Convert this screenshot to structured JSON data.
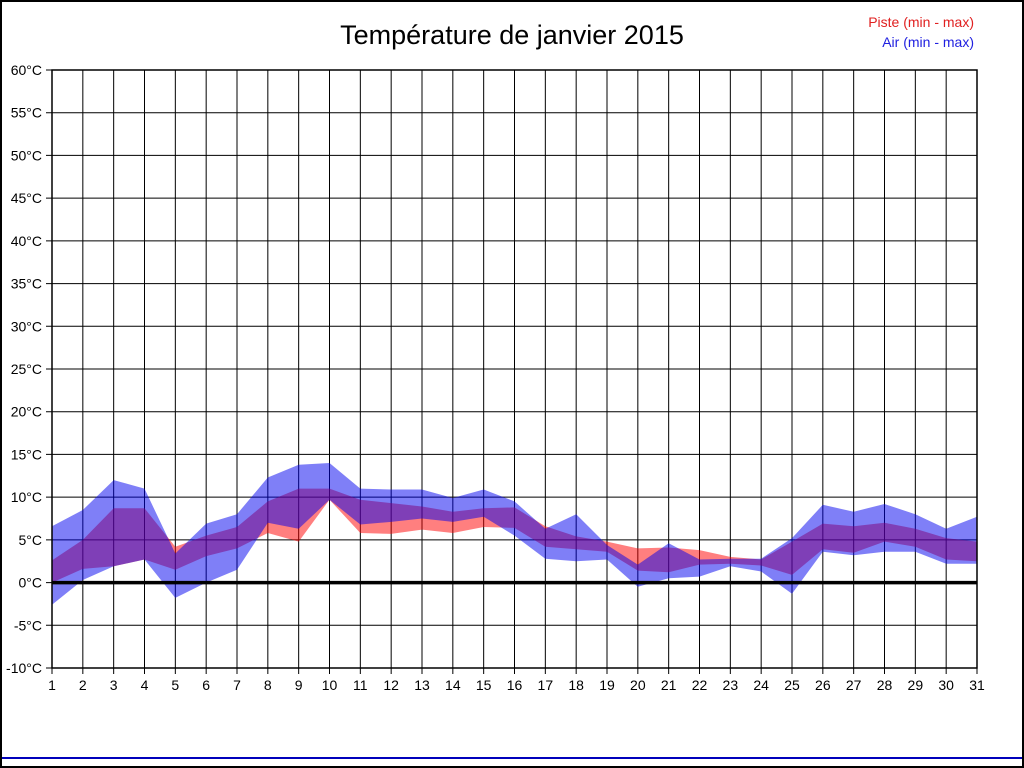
{
  "title": "Température de janvier 2015",
  "legend": {
    "piste_label": "Piste (min - max)",
    "air_label": "Air (min - max)",
    "piste_color": "#e02020",
    "air_color": "#2020e0"
  },
  "chart_data": {
    "type": "area",
    "subtype": "min-max-range-bands",
    "title": "Température de janvier 2015",
    "unit": "°C",
    "x": [
      1,
      2,
      3,
      4,
      5,
      6,
      7,
      8,
      9,
      10,
      11,
      12,
      13,
      14,
      15,
      16,
      17,
      18,
      19,
      20,
      21,
      22,
      23,
      24,
      25,
      26,
      27,
      28,
      29,
      30,
      31
    ],
    "x_labels": [
      "1",
      "2",
      "3",
      "4",
      "5",
      "6",
      "7",
      "8",
      "9",
      "10",
      "11",
      "12",
      "13",
      "14",
      "15",
      "16",
      "17",
      "18",
      "19",
      "20",
      "21",
      "22",
      "23",
      "24",
      "25",
      "26",
      "27",
      "28",
      "29",
      "30",
      "31"
    ],
    "ylim": [
      -10,
      60
    ],
    "ytick_step": 5,
    "y_labels": [
      "60°C",
      "55°C",
      "50°C",
      "45°C",
      "40°C",
      "35°C",
      "30°C",
      "25°C",
      "20°C",
      "15°C",
      "10°C",
      "5°C",
      "0°C",
      "-5°C",
      "-10°C"
    ],
    "grid": true,
    "zero_line": 0,
    "legend_position": "top-right",
    "series": [
      {
        "name": "Piste (min - max)",
        "fill": "rgba(255,0,0,0.5)",
        "min": [
          0.0,
          1.6,
          1.9,
          2.7,
          1.5,
          3.1,
          4.0,
          5.8,
          4.8,
          9.7,
          5.8,
          5.7,
          6.2,
          5.8,
          6.5,
          6.4,
          4.2,
          3.9,
          3.6,
          1.4,
          1.2,
          2.1,
          2.2,
          2.0,
          0.9,
          3.9,
          3.5,
          4.8,
          4.2,
          2.7,
          2.5
        ],
        "max": [
          2.6,
          5.0,
          8.7,
          8.7,
          4.2,
          5.5,
          6.5,
          9.5,
          11.0,
          11.0,
          9.7,
          9.3,
          8.9,
          8.3,
          8.7,
          8.8,
          6.6,
          5.4,
          4.8,
          4.0,
          4.1,
          3.8,
          3.0,
          2.7,
          4.8,
          6.9,
          6.6,
          7.0,
          6.3,
          5.2,
          4.8
        ]
      },
      {
        "name": "Air (min - max)",
        "fill": "rgba(0,0,240,0.5)",
        "min": [
          -2.6,
          0.3,
          1.9,
          2.7,
          -1.8,
          0.0,
          1.5,
          7.0,
          6.3,
          9.7,
          6.8,
          7.1,
          7.5,
          7.1,
          7.7,
          5.5,
          2.8,
          2.5,
          2.7,
          -0.5,
          0.5,
          0.7,
          1.9,
          1.3,
          -1.3,
          3.6,
          3.2,
          3.6,
          3.6,
          2.2,
          2.2
        ],
        "max": [
          6.6,
          8.5,
          12.0,
          11.0,
          3.4,
          6.9,
          8.0,
          12.3,
          13.8,
          14.0,
          11.0,
          10.9,
          10.9,
          9.9,
          10.9,
          9.5,
          6.3,
          8.0,
          4.4,
          2.1,
          4.6,
          2.7,
          2.8,
          2.8,
          5.2,
          9.1,
          8.3,
          9.2,
          8.0,
          6.3,
          7.7
        ]
      }
    ]
  }
}
